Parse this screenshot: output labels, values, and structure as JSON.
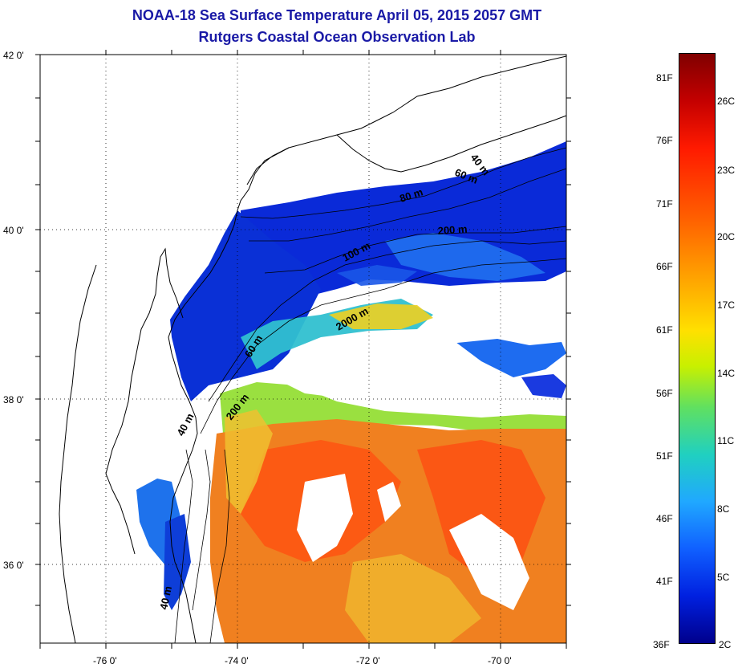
{
  "header": {
    "title_line1": "NOAA-18 Sea Surface Temperature April 05, 2015 2057 GMT",
    "title_line2": "Rutgers Coastal Ocean Observation Lab"
  },
  "map": {
    "y_ticks": [
      "42 0'",
      "40 0'",
      "38 0'",
      "36 0'"
    ],
    "x_ticks": [
      "-76 0'",
      "-74 0'",
      "-72 0'",
      "-70 0'"
    ],
    "isobath_labels": [
      "40 m",
      "60 m",
      "80 m",
      "200 m",
      "100 m",
      "2000 m",
      "60 m",
      "200 m",
      "40 m",
      "40 m"
    ],
    "colors": {
      "cold": "#0a2ad8",
      "cool": "#1e6cf0",
      "mid": "#30c0d0",
      "green": "#9ae040",
      "yellow": "#f0d020",
      "orange": "#f08020",
      "warm": "#ff5010",
      "land_line": "#000000"
    }
  },
  "colorbar": {
    "fahrenheit_labels": [
      "81F",
      "76F",
      "71F",
      "66F",
      "61F",
      "56F",
      "51F",
      "46F",
      "41F",
      "36F"
    ],
    "celsius_labels": [
      "26C",
      "23C",
      "20C",
      "17C",
      "14C",
      "11C",
      "8C",
      "5C",
      "2C"
    ]
  }
}
